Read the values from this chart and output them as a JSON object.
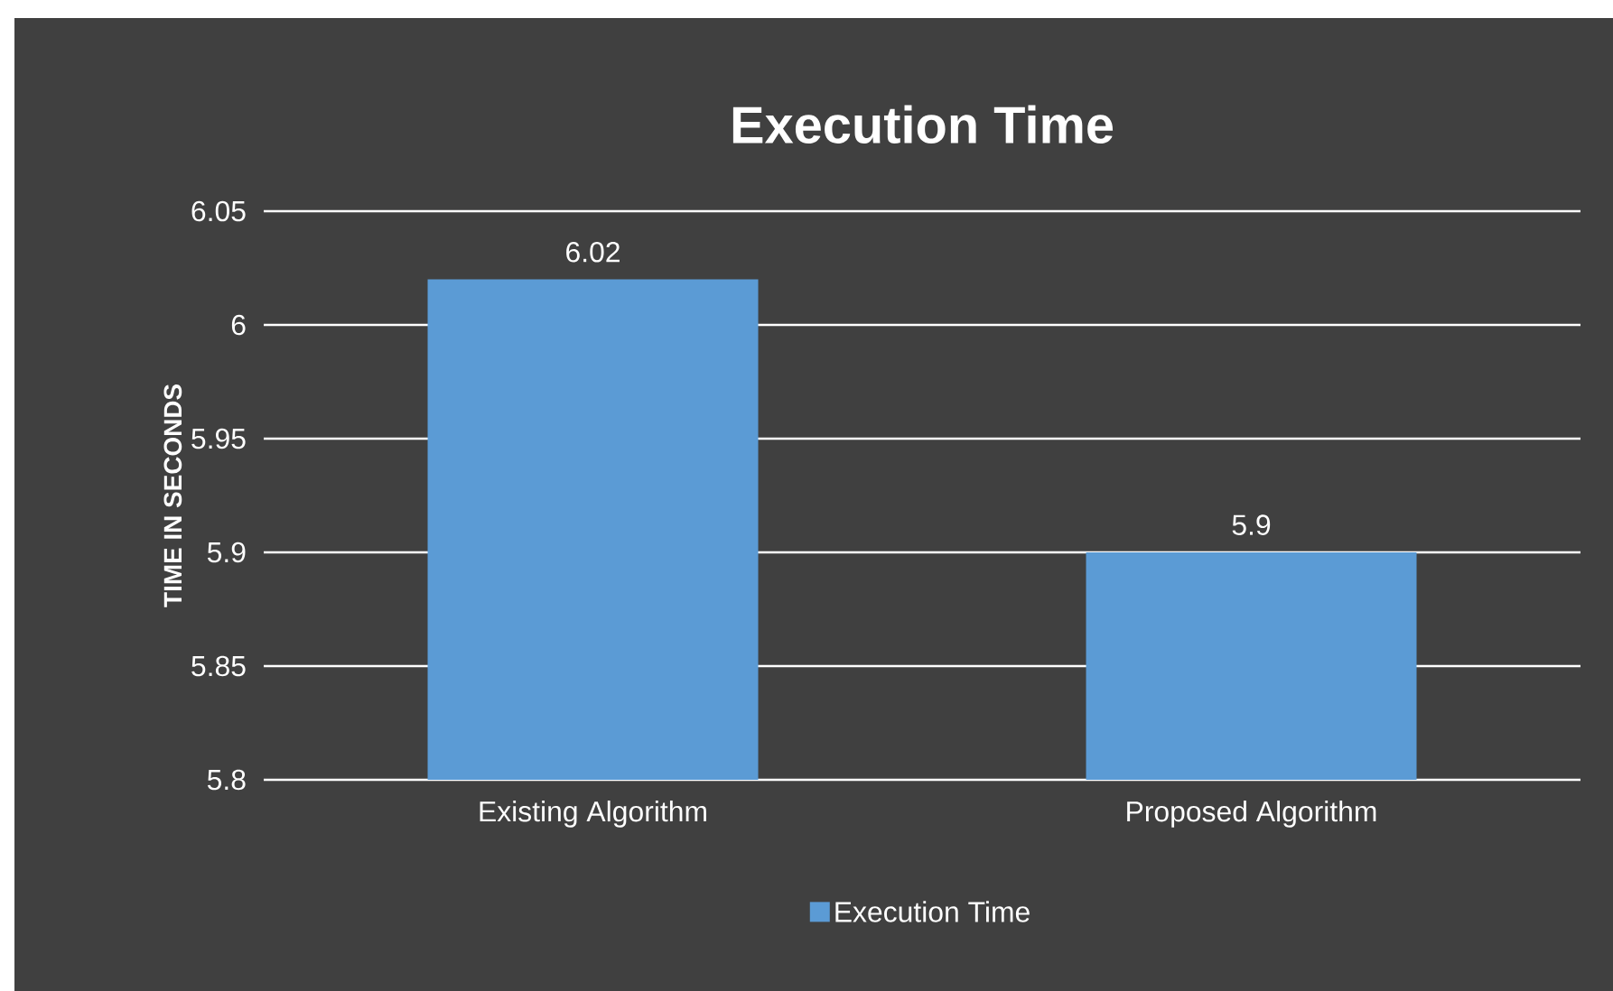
{
  "chart_data": {
    "type": "bar",
    "title": "Execution Time",
    "ylabel": "TIME IN SECONDS",
    "categories": [
      "Existing Algorithm",
      "Proposed Algorithm"
    ],
    "series": [
      {
        "name": "Execution Time",
        "color": "#5b9bd5",
        "values": [
          6.02,
          5.9
        ]
      }
    ],
    "ylim": [
      5.8,
      6.05
    ],
    "yticks": [
      5.8,
      5.85,
      5.9,
      5.95,
      6,
      6.05
    ],
    "grid": "y",
    "legend": "bottom",
    "data_labels": true
  }
}
